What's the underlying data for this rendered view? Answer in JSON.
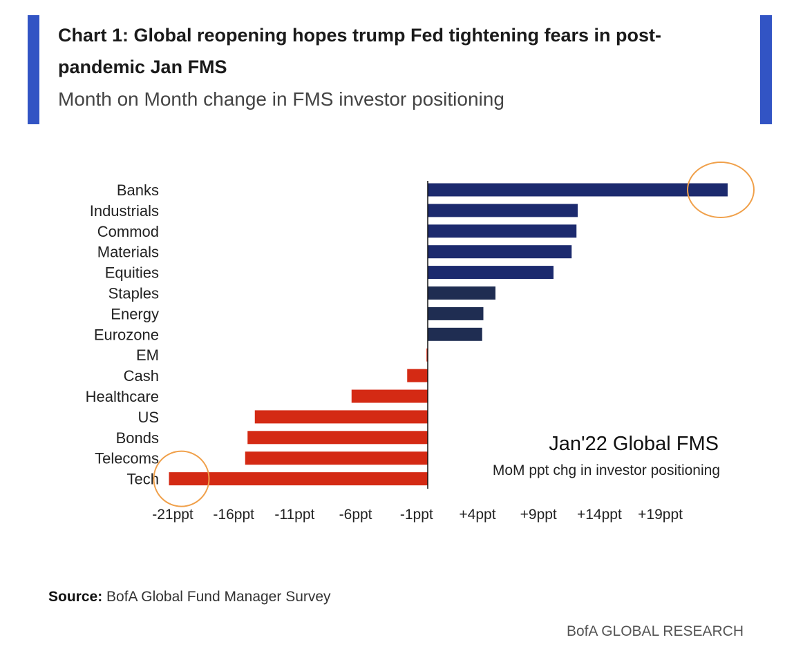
{
  "header": {
    "title": "Chart 1: Global reopening hopes trump Fed tightening fears in post-pandemic Jan FMS",
    "subtitle": "Month on Month change in FMS investor positioning"
  },
  "legend": {
    "title": "Jan'22 Global FMS",
    "subtitle": "MoM ppt chg in investor positioning"
  },
  "footer": {
    "source_label": "Source:",
    "source_text": "BofA Global Fund Manager Survey",
    "brand": "BofA GLOBAL RESEARCH"
  },
  "colors": {
    "accent": "#3254c4",
    "positive_strong": "#1c2a6e",
    "positive_muted": "#1f2d52",
    "negative": "#d42a14",
    "highlight_circle": "#f0a04a"
  },
  "chart_data": {
    "type": "bar",
    "orientation": "horizontal",
    "categories": [
      "Banks",
      "Industrials",
      "Commod",
      "Materials",
      "Equities",
      "Staples",
      "Energy",
      "Eurozone",
      "EM",
      "Cash",
      "Healthcare",
      "US",
      "Bonds",
      "Telecoms",
      "Tech"
    ],
    "values": [
      24.8,
      12.4,
      12.3,
      11.9,
      10.4,
      5.6,
      4.6,
      4.5,
      -0.1,
      -1.7,
      -6.3,
      -14.3,
      -14.9,
      -15.1,
      -21.4
    ],
    "xlim": [
      -22.5,
      22.5
    ],
    "xticks": [
      -21,
      -16,
      -11,
      -6,
      -1,
      4,
      9,
      14,
      19
    ],
    "xtick_labels": [
      "-21ppt",
      "-16ppt",
      "-11ppt",
      "-6ppt",
      "-1ppt",
      "+4ppt",
      "+9ppt",
      "+14ppt",
      "+19ppt"
    ],
    "zero_line_at": -1,
    "highlighted": [
      "Banks",
      "Tech"
    ],
    "legend_placement": "bottom-right",
    "grid": false
  }
}
